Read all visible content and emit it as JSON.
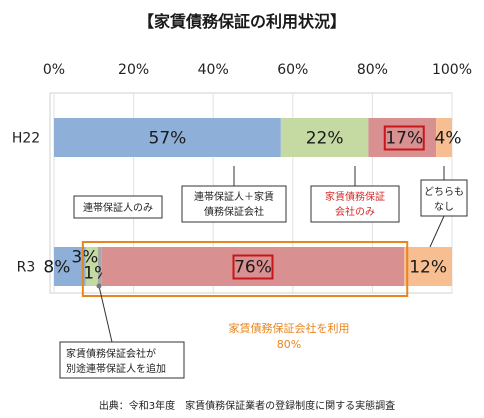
{
  "chart_data": {
    "type": "bar",
    "orientation": "horizontal-stacked",
    "title": "【家賃債務保証の利用状況】",
    "x_ticks": [
      "0%",
      "20%",
      "40%",
      "60%",
      "80%",
      "100%"
    ],
    "xlim": [
      0,
      100
    ],
    "categories": [
      "H22",
      "R3"
    ],
    "rows": [
      {
        "category": "H22",
        "segments": [
          {
            "value": 57,
            "label": "57%",
            "color": "#8eb0d8"
          },
          {
            "value": 22,
            "label": "22%",
            "color": "#c5d9a3"
          },
          {
            "value": 17,
            "label": "17%",
            "color": "#d89090"
          },
          {
            "value": 4,
            "label": "4%",
            "color": "#f7be91"
          }
        ]
      },
      {
        "category": "R3",
        "segments": [
          {
            "value": 8,
            "label": "8%",
            "color": "#8eb0d8"
          },
          {
            "value": 3,
            "label": "3%",
            "color": "#c5d9a3"
          },
          {
            "value": 1,
            "label": "1%",
            "color": "#a8a8a8"
          },
          {
            "value": 76,
            "label": "76%",
            "color": "#d89090"
          },
          {
            "value": 12,
            "label": "12%",
            "color": "#f7be91"
          }
        ]
      }
    ],
    "callouts": {
      "joint_only": "連帯保証人のみ",
      "joint_plus_company_line1": "連帯保証人＋家賃",
      "joint_plus_company_line2": "債務保証会社",
      "company_only_line1": "家賃債務保証",
      "company_only_line2": "会社のみ",
      "neither_line1": "どちらも",
      "neither_line2": "なし",
      "company_added_joint_line1": "家賃債務保証会社が",
      "company_added_joint_line2": "別途連帯保証人を追加"
    },
    "company_use": {
      "label": "家賃債務保証会社を利用",
      "value_label": "80%"
    },
    "source": "出典：令和3年度　家賃債務保証業者の登録制度に関する実態調査",
    "grid": true,
    "legend": "none",
    "colors": {
      "highlight_box": "#c8161d",
      "orange_box": "#e8851f"
    }
  }
}
